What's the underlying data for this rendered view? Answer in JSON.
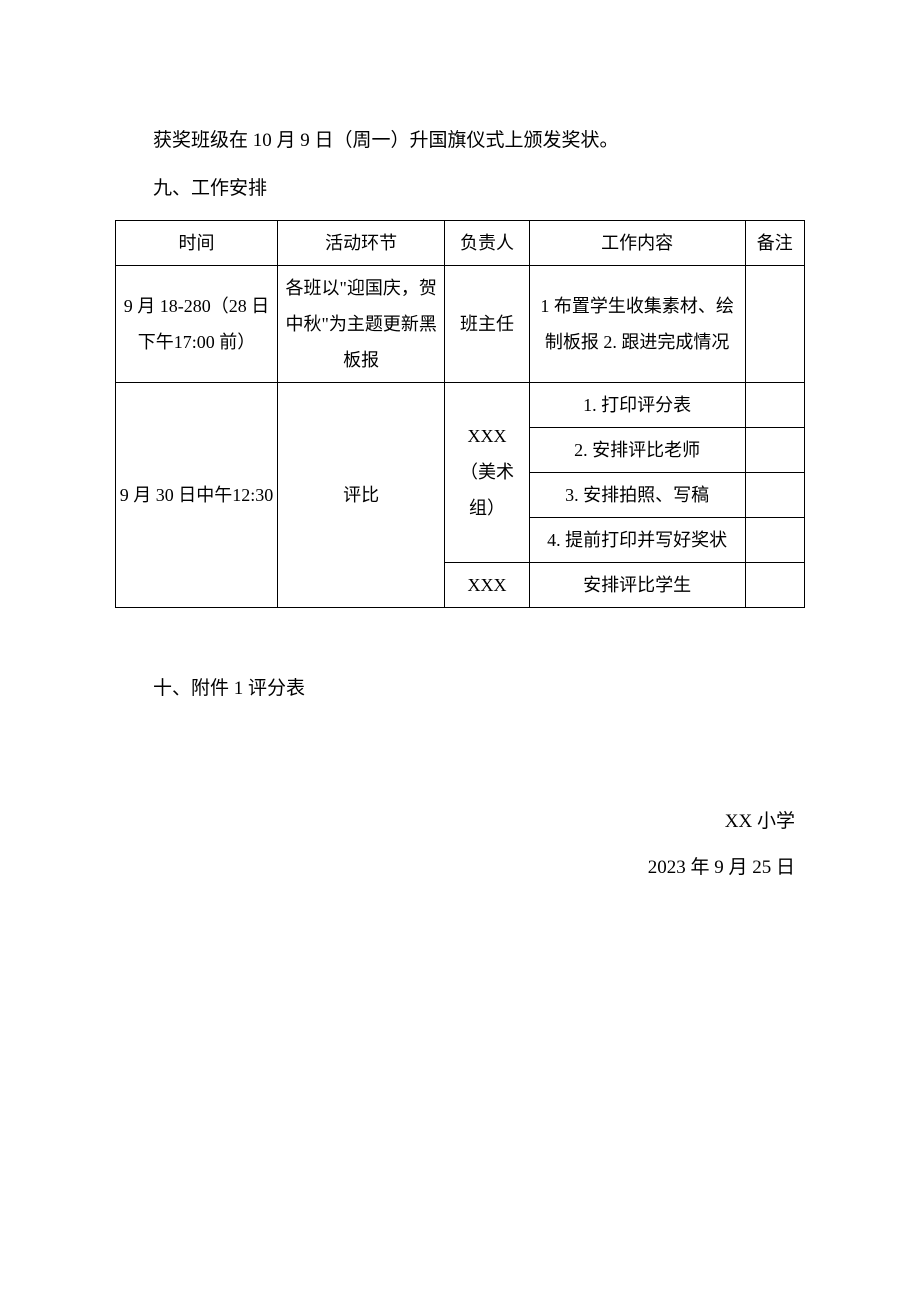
{
  "body": {
    "award_line": "获奖班级在 10 月 9 日（周一）升国旗仪式上颁发奖状。",
    "section9_title": "九、工作安排",
    "section10_title": "十、附件 1 评分表"
  },
  "table": {
    "headers": {
      "time": "时间",
      "stage": "活动环节",
      "owner": "负责人",
      "work": "工作内容",
      "note": "备注"
    },
    "rows": {
      "r1": {
        "time": "9 月 18-280（28 日下午17:00 前）",
        "stage": "各班以\"迎国庆，贺中秋\"为主题更新黑板报",
        "owner": "班主任",
        "work": "1 布置学生收集素材、绘制板报 2. 跟进完成情况",
        "note": ""
      },
      "r2": {
        "time": "9 月 30 日中午12:30",
        "stage": "评比",
        "owner_a": "XXX　（美术组）",
        "work_a1": "1. 打印评分表",
        "work_a2": "2. 安排评比老师",
        "work_a3": "3. 安排拍照、写稿",
        "work_a4": "4. 提前打印并写好奖状",
        "owner_b": "XXX",
        "work_b": "安排评比学生",
        "note": ""
      }
    }
  },
  "signature": {
    "school": "XX 小学",
    "date": "2023 年 9 月 25 日"
  }
}
